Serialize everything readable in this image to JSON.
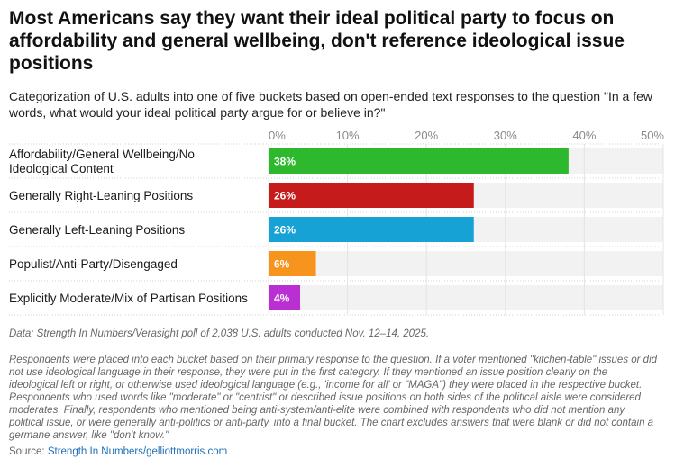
{
  "title": "Most Americans say they want their ideal political party to focus on affordability and general wellbeing, don't reference ideological issue positions",
  "subtitle": "Categorization of U.S. adults into one of five buckets based on open-ended text responses to the question \"In a few words, what would your ideal political party argue for or believe in?\"",
  "chart_data": {
    "type": "bar",
    "orientation": "horizontal",
    "categories": [
      [
        "Affordability/General Wellbeing/No",
        "Ideological Content"
      ],
      [
        "Generally Right-Leaning Positions"
      ],
      [
        "Generally Left-Leaning Positions"
      ],
      [
        "Populist/Anti-Party/Disengaged"
      ],
      [
        "Explicitly Moderate/Mix of Partisan Positions"
      ]
    ],
    "values": [
      38,
      26,
      26,
      6,
      4
    ],
    "value_labels": [
      "38%",
      "26%",
      "26%",
      "6%",
      "4%"
    ],
    "colors": [
      "#2db82d",
      "#c61b1b",
      "#17a2d6",
      "#f7941d",
      "#b92fd1"
    ],
    "ticks": [
      0,
      10,
      20,
      30,
      40,
      50
    ],
    "tick_labels": [
      "0%",
      "10%",
      "20%",
      "30%",
      "40%",
      "50%"
    ],
    "xlim": [
      0,
      50
    ],
    "grid": true
  },
  "notes": {
    "data": "Data: Strength In Numbers/Verasight poll of 2,038 U.S. adults conducted Nov. 12–14, 2025.",
    "method": "Respondents were placed into each bucket based on their primary response to the question. If a voter mentioned \"kitchen-table\" issues or did not use ideological language in their response, they were put in the first category. If they mentioned an issue position clearly on the ideological left or right, or otherwise used ideological language (e.g., 'income for all' or \"MAGA\") they were placed in the respective bucket. Respondents who used words like \"moderate\" or \"centrist\" or described issue positions on both sides of the political aisle were considered moderates. Finally, respondents who mentioned being anti-system/anti-elite were combined with respondents who did not mention any political issue, or were generally anti-politics or anti-party, into a final bucket. The chart excludes answers that were blank or did not contain a germane answer, like \"don't know.\""
  },
  "source": {
    "prefix": "Source: ",
    "link_text": "Strength In Numbers/gelliottmorris.com"
  }
}
